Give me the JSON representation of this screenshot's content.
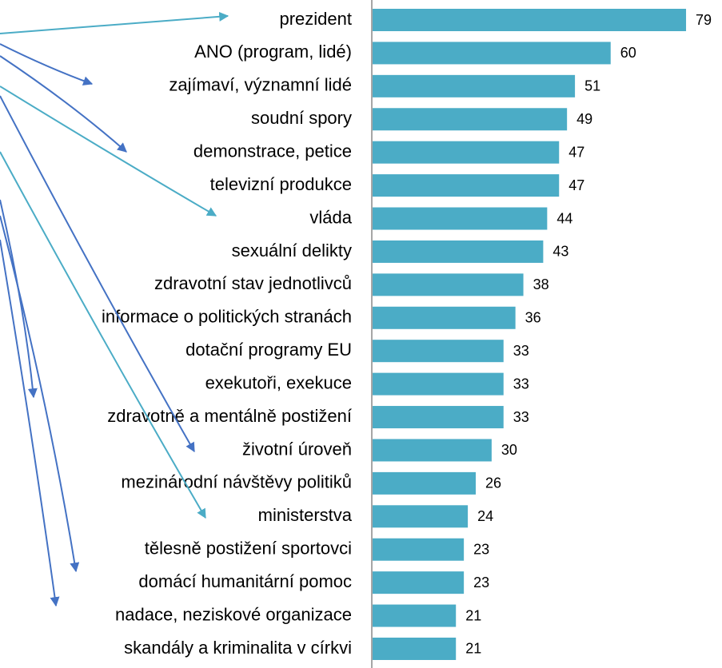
{
  "chart_data": {
    "type": "bar",
    "orientation": "horizontal",
    "categories": [
      "prezident",
      "ANO (program, lidé)",
      "zajímaví, významní lidé",
      "soudní spory",
      "demonstrace, petice",
      "televizní produkce",
      "vláda",
      "sexuální delikty",
      "zdravotní stav jednotlivců",
      "informace o politických stranách",
      "dotační programy EU",
      "exekutoři, exekuce",
      "zdravotně a mentálně postižení",
      "životní úroveň",
      "mezinárodní návštěvy politiků",
      "ministerstva",
      "tělesně postižení sportovci",
      "domácí humanitární pomoc",
      "nadace, neziskové organizace",
      "skandály a kriminalita v církvi"
    ],
    "values": [
      79,
      60,
      51,
      49,
      47,
      47,
      44,
      43,
      38,
      36,
      33,
      33,
      33,
      30,
      26,
      24,
      23,
      23,
      21,
      21
    ],
    "color": "#4bacc6",
    "xlim": [
      0,
      80
    ]
  }
}
